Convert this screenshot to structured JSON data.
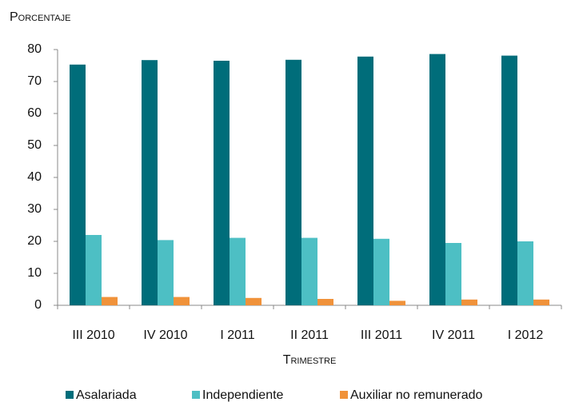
{
  "chart_data": {
    "type": "bar",
    "y_label": "Porcentaje",
    "x_label": "Trimestre",
    "categories": [
      "III 2010",
      "IV 2010",
      "I 2011",
      "II 2011",
      "III 2011",
      "IV 2011",
      "I 2012"
    ],
    "series": [
      {
        "name": "Asalariada",
        "color": "#006d7a",
        "values": [
          75.3,
          76.7,
          76.5,
          76.8,
          77.8,
          78.6,
          78.1
        ]
      },
      {
        "name": "Independiente",
        "color": "#4dbfc4",
        "values": [
          22.0,
          20.4,
          21.1,
          21.1,
          20.8,
          19.5,
          20.0
        ]
      },
      {
        "name": "Auxiliar no remunerado",
        "color": "#f0923a",
        "values": [
          2.6,
          2.6,
          2.3,
          2.0,
          1.4,
          1.8,
          1.8
        ]
      }
    ],
    "ylim": [
      0,
      80
    ],
    "yticks": [
      0,
      10,
      20,
      30,
      40,
      50,
      60,
      70,
      80
    ],
    "grid": false
  }
}
